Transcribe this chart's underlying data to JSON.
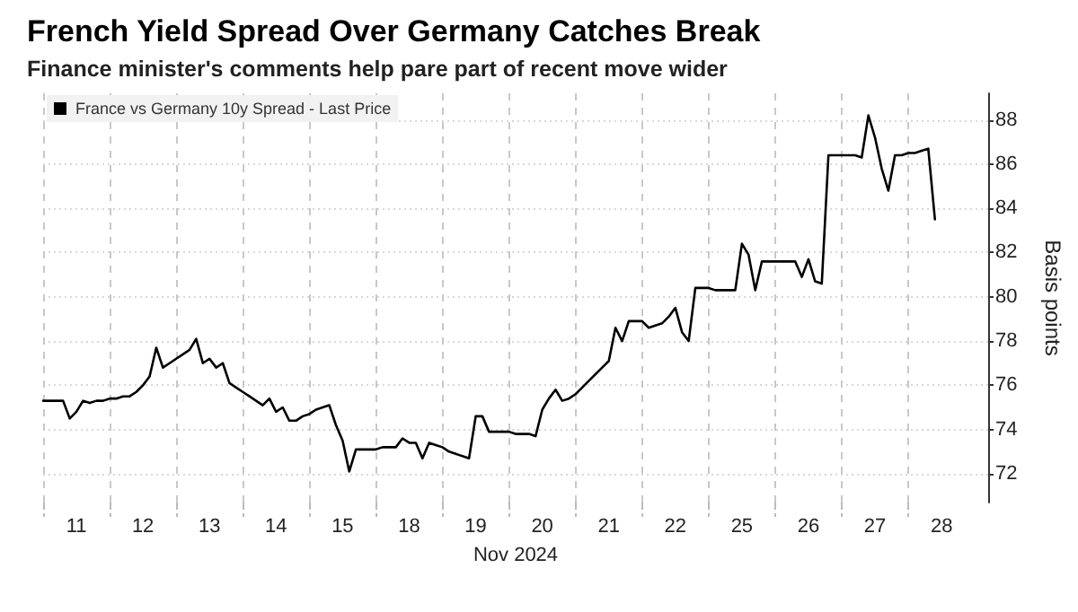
{
  "chart_data": {
    "type": "line",
    "title": "French Yield Spread Over Germany Catches Break",
    "subtitle": "Finance minister's comments help pare part of recent move wider",
    "xlabel": "Nov 2024",
    "ylabel": "Basis points",
    "categories": [
      null,
      null,
      null,
      null,
      null,
      "11",
      null,
      null,
      null,
      null,
      null,
      null,
      null,
      null,
      null,
      "12",
      null,
      null,
      null,
      null,
      null,
      null,
      null,
      null,
      null,
      "13",
      null,
      null,
      null,
      null,
      null,
      null,
      null,
      null,
      null,
      "14",
      null,
      null,
      null,
      null,
      null,
      null,
      null,
      null,
      null,
      "15",
      null,
      null,
      null,
      null,
      null,
      null,
      null,
      null,
      null,
      "18",
      null,
      null,
      null,
      null,
      null,
      null,
      null,
      null,
      null,
      "19",
      null,
      null,
      null,
      null,
      null,
      null,
      null,
      null,
      null,
      "20",
      null,
      null,
      null,
      null,
      null,
      null,
      null,
      null,
      null,
      "21",
      null,
      null,
      null,
      null,
      null,
      null,
      null,
      null,
      null,
      "22",
      null,
      null,
      null,
      null,
      null,
      null,
      null,
      null,
      null,
      "25",
      null,
      null,
      null,
      null,
      null,
      null,
      null,
      null,
      null,
      "26",
      null,
      null,
      null,
      null,
      null,
      null,
      null,
      null,
      null,
      "27",
      null,
      null,
      null,
      null,
      null,
      null,
      null,
      null,
      null,
      "28",
      null,
      null,
      null,
      null,
      null,
      null,
      null
    ],
    "ylim": [
      70.7,
      89.2
    ],
    "yticks": [
      72,
      74,
      76,
      78,
      80,
      82,
      84,
      86,
      88
    ],
    "grid": true,
    "legend": "top left",
    "marker": "none",
    "line_style": "solid",
    "series": [
      {
        "name": "France vs Germany 10y Spread - Last Price",
        "color": "#000000",
        "values": [
          75.3,
          75.3,
          75.3,
          75.3,
          74.5,
          74.8,
          75.3,
          75.2,
          75.3,
          75.3,
          75.4,
          75.4,
          75.5,
          75.5,
          75.7,
          76.0,
          76.4,
          77.7,
          76.8,
          77.0,
          77.2,
          77.4,
          77.6,
          78.1,
          77.0,
          77.2,
          76.8,
          77.0,
          76.1,
          75.9,
          75.7,
          75.5,
          75.3,
          75.1,
          75.4,
          74.8,
          75.0,
          74.4,
          74.4,
          74.6,
          74.7,
          74.9,
          75.0,
          75.1,
          74.2,
          73.5,
          72.1,
          73.1,
          73.1,
          73.1,
          73.1,
          73.2,
          73.2,
          73.2,
          73.6,
          73.4,
          73.4,
          72.7,
          73.4,
          73.3,
          73.2,
          73.0,
          72.9,
          72.8,
          72.7,
          74.6,
          74.6,
          73.9,
          73.9,
          73.9,
          73.9,
          73.8,
          73.8,
          73.8,
          73.7,
          74.9,
          75.4,
          75.8,
          75.3,
          75.4,
          75.6,
          75.9,
          76.2,
          76.5,
          76.8,
          77.1,
          78.6,
          78.0,
          78.9,
          78.9,
          78.9,
          78.6,
          78.7,
          78.8,
          79.1,
          79.5,
          78.4,
          78.0,
          80.4,
          80.4,
          80.4,
          80.3,
          80.3,
          80.3,
          80.3,
          82.4,
          81.9,
          80.3,
          81.6,
          81.6,
          81.6,
          81.6,
          81.6,
          81.6,
          80.9,
          81.7,
          80.7,
          80.6,
          86.4,
          86.4,
          86.4,
          86.4,
          86.4,
          86.3,
          88.2,
          87.2,
          85.8,
          84.8,
          86.4,
          86.4,
          86.5,
          86.5,
          86.6,
          86.7,
          83.5,
          null,
          null,
          null,
          null,
          null,
          null,
          null,
          null
        ]
      }
    ]
  }
}
